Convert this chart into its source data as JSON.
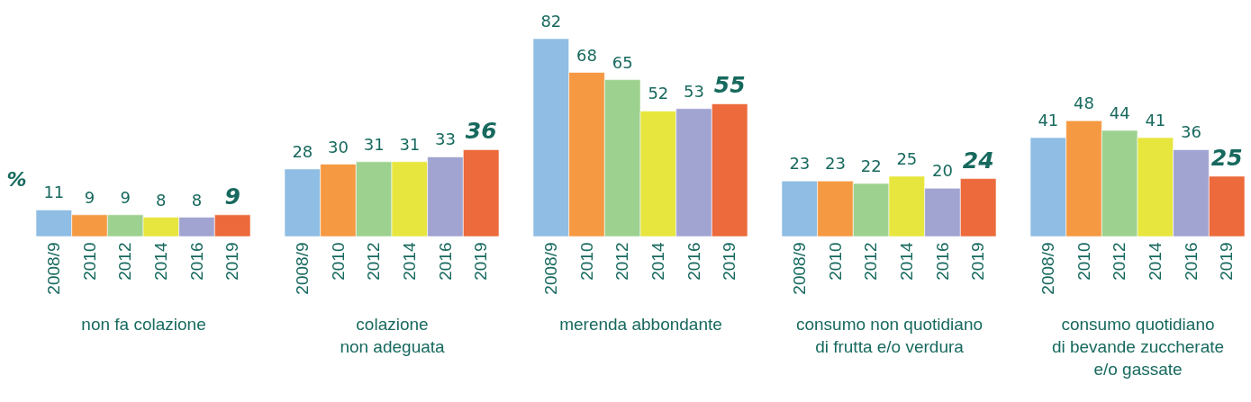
{
  "chart_data": [
    {
      "type": "bar",
      "categories": [
        "2008/9",
        "2010",
        "2012",
        "2014",
        "2016",
        "2019"
      ],
      "values": [
        11,
        9,
        9,
        8,
        8,
        9
      ],
      "colors": [
        "#8fbde3",
        "#f59942",
        "#9dd18f",
        "#e7e63e",
        "#a1a3d1",
        "#ec6a3b"
      ],
      "xlabel": "non fa colazione",
      "ylabel": "%",
      "data_labels": true,
      "tick_labels": "x"
    },
    {
      "type": "bar",
      "categories": [
        "2008/9",
        "2010",
        "2012",
        "2014",
        "2016",
        "2019"
      ],
      "values": [
        28,
        30,
        31,
        31,
        33,
        36
      ],
      "colors": [
        "#8fbde3",
        "#f59942",
        "#9dd18f",
        "#e7e63e",
        "#a1a3d1",
        "#ec6a3b"
      ],
      "xlabel": "colazione\nnon adeguata",
      "data_labels": true,
      "tick_labels": "x"
    },
    {
      "type": "bar",
      "categories": [
        "2008/9",
        "2010",
        "2012",
        "2014",
        "2016",
        "2019"
      ],
      "values": [
        82,
        68,
        65,
        52,
        53,
        55
      ],
      "colors": [
        "#8fbde3",
        "#f59942",
        "#9dd18f",
        "#e7e63e",
        "#a1a3d1",
        "#ec6a3b"
      ],
      "xlabel": "merenda abbondante",
      "data_labels": true,
      "tick_labels": "x"
    },
    {
      "type": "bar",
      "categories": [
        "2008/9",
        "2010",
        "2012",
        "2014",
        "2016",
        "2019"
      ],
      "values": [
        23,
        23,
        22,
        25,
        20,
        24
      ],
      "colors": [
        "#8fbde3",
        "#f59942",
        "#9dd18f",
        "#e7e63e",
        "#a1a3d1",
        "#ec6a3b"
      ],
      "xlabel": "consumo non quotidiano\ndi frutta e/o verdura",
      "data_labels": true,
      "tick_labels": "x"
    },
    {
      "type": "bar",
      "categories": [
        "2008/9",
        "2010",
        "2012",
        "2014",
        "2016",
        "2019"
      ],
      "values": [
        41,
        48,
        44,
        41,
        36,
        25
      ],
      "colors": [
        "#8fbde3",
        "#f59942",
        "#9dd18f",
        "#e7e63e",
        "#a1a3d1",
        "#ec6a3b"
      ],
      "xlabel": "consumo quotidiano\ndi bevande zuccherate\ne/o gassate",
      "data_labels": true,
      "tick_labels": "x"
    }
  ]
}
